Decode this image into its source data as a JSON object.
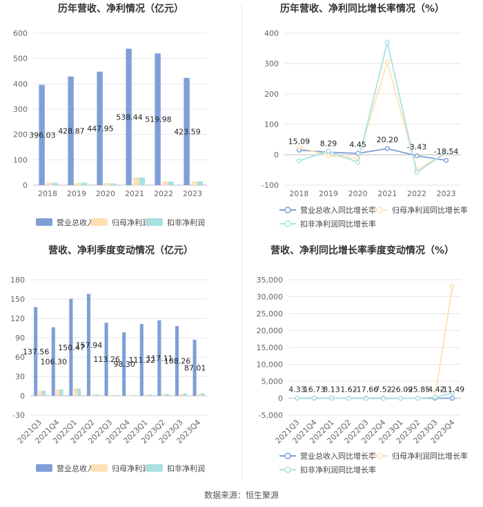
{
  "footer": "数据来源：恒生聚源",
  "chart_data": [
    {
      "type": "bar",
      "title": "历年营收、净利情况（亿元）",
      "categories": [
        "2018",
        "2019",
        "2020",
        "2021",
        "2022",
        "2023"
      ],
      "ylim": [
        0,
        600
      ],
      "yticks": [
        0,
        100,
        200,
        300,
        400,
        500,
        600
      ],
      "grid": true,
      "legend": "bottom",
      "series": [
        {
          "name": "营业总收入",
          "color": "#7f9fd6",
          "values": [
            396.03,
            428.87,
            447.95,
            538.44,
            519.98,
            423.59
          ],
          "labels": [
            "396.03",
            "428.87",
            "447.95",
            "538.44",
            "519.98",
            "423.59"
          ]
        },
        {
          "name": "归母净利润",
          "color": "#fde0b4",
          "values": [
            10,
            9,
            8,
            30,
            15,
            14
          ]
        },
        {
          "name": "扣非净利润",
          "color": "#a8e1e1",
          "values": [
            9,
            10,
            7,
            30,
            14,
            15
          ]
        }
      ]
    },
    {
      "type": "line",
      "title": "历年营收、净利同比增长率情况（%）",
      "categories": [
        "2018",
        "2019",
        "2020",
        "2021",
        "2022",
        "2023"
      ],
      "ylim": [
        -100,
        400
      ],
      "yticks": [
        -100,
        0,
        100,
        200,
        300,
        400
      ],
      "grid": true,
      "legend": "bottom",
      "series": [
        {
          "name": "营业总收入同比增长率",
          "color": "#7f9fd6",
          "values": [
            15.09,
            8.29,
            4.45,
            20.2,
            -3.43,
            -18.54
          ],
          "labels": [
            "15.09",
            "8.29",
            "4.45",
            "20.20",
            "-3.43",
            "-18.54"
          ]
        },
        {
          "name": "归母净利润同比增长率",
          "color": "#fde0b4",
          "values": [
            25,
            -3,
            -12,
            305,
            -50,
            5
          ]
        },
        {
          "name": "扣非净利润同比增长率",
          "color": "#a8e1e1",
          "values": [
            -20,
            12,
            -25,
            370,
            -58,
            8
          ]
        }
      ]
    },
    {
      "type": "bar",
      "title": "营收、净利季度变动情况（亿元）",
      "categories": [
        "2021Q3",
        "2021Q4",
        "2022Q1",
        "2022Q2",
        "2022Q3",
        "2022Q4",
        "2023Q1",
        "2023Q2",
        "2023Q3",
        "2023Q4"
      ],
      "ylim": [
        -30,
        180
      ],
      "yticks": [
        -30,
        0,
        30,
        60,
        90,
        120,
        150,
        180
      ],
      "grid": true,
      "legend": "bottom",
      "series": [
        {
          "name": "营业总收入",
          "color": "#7f9fd6",
          "values": [
            137.56,
            106.3,
            150.47,
            157.94,
            113.26,
            98.3,
            111.22,
            117.11,
            108.26,
            87.01
          ],
          "labels": [
            "137.56",
            "106.30",
            "150.47",
            "157.94",
            "113.26",
            "98.30",
            "111.22",
            "117.11",
            "108.26",
            "87.01"
          ]
        },
        {
          "name": "归母净利润",
          "color": "#fde0b4",
          "values": [
            8,
            10,
            12,
            2,
            -1,
            0,
            2,
            3,
            3,
            3
          ]
        },
        {
          "name": "扣非净利润",
          "color": "#a8e1e1",
          "values": [
            8,
            10,
            11,
            2,
            -1,
            0,
            2,
            3,
            4,
            4
          ]
        }
      ]
    },
    {
      "type": "line",
      "title": "营收、净利同比增长率季度变动情况（%）",
      "categories": [
        "2021Q3",
        "2021Q4",
        "2022Q1",
        "2022Q2",
        "2022Q3",
        "2022Q4",
        "2023Q1",
        "2023Q2",
        "2023Q3",
        "2023Q4"
      ],
      "ylim": [
        -5000,
        35000
      ],
      "yticks": [
        -5000,
        0,
        5000,
        10000,
        15000,
        20000,
        25000,
        30000,
        35000
      ],
      "ytick_labels": [
        "-5,000",
        "0",
        "5,000",
        "10,000",
        "15,000",
        "20,000",
        "25,000",
        "30,000",
        "35,000"
      ],
      "grid": true,
      "legend": "bottom",
      "series": [
        {
          "name": "营业总收入同比增长率",
          "color": "#7f9fd6",
          "values": [
            4.33,
            16.73,
            8.13,
            1.62,
            -17.66,
            7.52,
            -26.09,
            -25.85,
            -4.42,
            -11.49
          ],
          "labels": [
            "4.33",
            "16.73",
            "8.13",
            "1.62",
            "-17.66",
            "7.52",
            "-26.09",
            "-25.85",
            "-4.42",
            "-11.49"
          ]
        },
        {
          "name": "归母净利润同比增长率",
          "color": "#fde0b4",
          "values": [
            50,
            80,
            30,
            -60,
            -100,
            -100,
            -40,
            -20,
            300,
            33000
          ]
        },
        {
          "name": "扣非净利润同比增长率",
          "color": "#a8e1e1",
          "values": [
            60,
            90,
            40,
            -60,
            -100,
            -100,
            -40,
            -20,
            250,
            1500
          ]
        }
      ]
    }
  ]
}
